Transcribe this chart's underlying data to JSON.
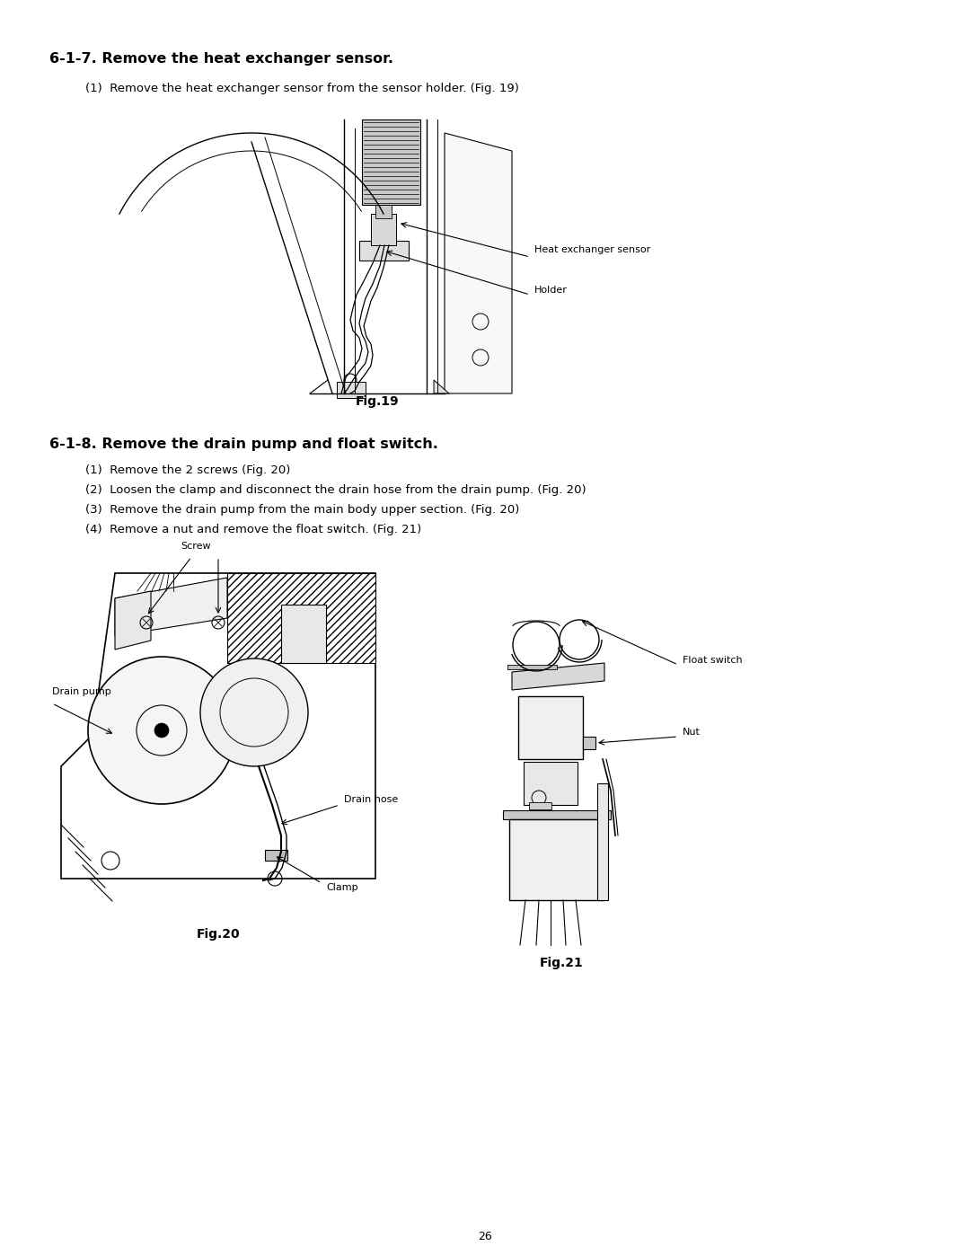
{
  "bg_color": "#ffffff",
  "title1": "6-1-7. Remove the heat exchanger sensor.",
  "step1_1": "(1)  Remove the heat exchanger sensor from the sensor holder. (Fig. 19)",
  "fig19_caption": "Fig.19",
  "title2": "6-1-8. Remove the drain pump and float switch.",
  "step2_1": "(1)  Remove the 2 screws (Fig. 20)",
  "step2_2": "(2)  Loosen the clamp and disconnect the drain hose from the drain pump. (Fig. 20)",
  "step2_3": "(3)  Remove the drain pump from the main body upper section. (Fig. 20)",
  "step2_4": "(4)  Remove a nut and remove the float switch. (Fig. 21)",
  "fig20_caption": "Fig.20",
  "fig21_caption": "Fig.21",
  "page_number": "26",
  "label_heat_exchanger_sensor": "Heat exchanger sensor",
  "label_holder": "Holder",
  "label_drain_pump": "Drain pump",
  "label_screw": "Screw",
  "label_drain_hose": "Drain hose",
  "label_clamp": "Clamp",
  "label_float_switch": "Float switch",
  "label_nut": "Nut",
  "font_size_title": 11.5,
  "font_size_body": 9.5,
  "font_size_caption": 10,
  "font_size_label": 8,
  "font_size_page": 9
}
